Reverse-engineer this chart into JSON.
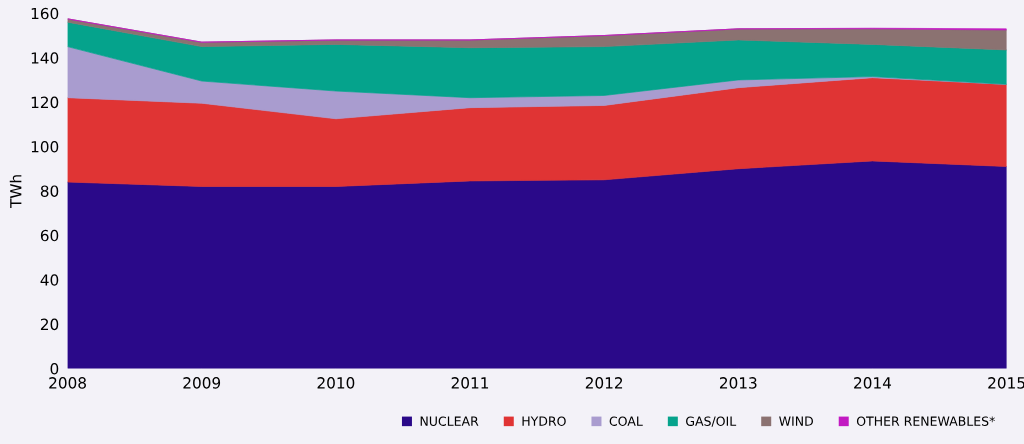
{
  "chart_data": {
    "type": "area",
    "stacked": true,
    "ylabel": "TWh",
    "x": [
      2008,
      2009,
      2010,
      2011,
      2012,
      2013,
      2014,
      2015
    ],
    "xlim": [
      2008,
      2015
    ],
    "xticks": [
      2008,
      2009,
      2010,
      2011,
      2012,
      2013,
      2014,
      2015
    ],
    "ylim": [
      0,
      160
    ],
    "yticks": [
      0,
      20,
      40,
      60,
      80,
      100,
      120,
      140,
      160
    ],
    "grid": false,
    "legend": "bottom right",
    "series": [
      {
        "name": "NUCLEAR",
        "color": "#2a0989",
        "values": [
          84,
          82,
          82,
          84.5,
          85,
          90,
          93.5,
          91
        ]
      },
      {
        "name": "HYDRO",
        "color": "#e03434",
        "values": [
          38,
          37.5,
          30.5,
          33,
          33.5,
          36.5,
          37.5,
          37
        ]
      },
      {
        "name": "COAL",
        "color": "#a99ccf",
        "values": [
          23,
          10,
          12.5,
          4.5,
          4.5,
          3.5,
          0.5,
          0
        ]
      },
      {
        "name": "GAS/OIL",
        "color": "#05a38c",
        "values": [
          11,
          15.5,
          21,
          22.5,
          22,
          18,
          14.5,
          15.5
        ]
      },
      {
        "name": "WIND",
        "color": "#8b7271",
        "values": [
          1.5,
          2,
          2,
          3.5,
          5,
          5,
          7,
          9
        ]
      },
      {
        "name": "OTHER RENEWABLES*",
        "color": "#c21ac2",
        "values": [
          0,
          0,
          0,
          0,
          0,
          0,
          0.3,
          0.5
        ]
      }
    ]
  }
}
